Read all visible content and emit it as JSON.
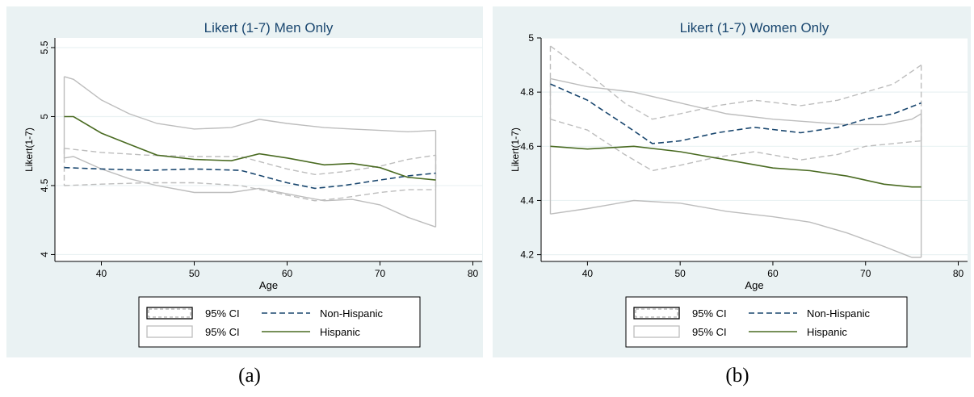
{
  "panels": [
    {
      "caption": "(a)",
      "colors": {
        "background": "#eaf2f3",
        "plot_bg": "#ffffff",
        "grid": "#eaf2f3",
        "title": "#1a476f"
      },
      "chart_data": {
        "type": "line",
        "title": "Likert (1-7) Men Only",
        "xlabel": "Age",
        "ylabel": "Likert(1-7)",
        "xlim": [
          35,
          81
        ],
        "ylim": [
          3.95,
          5.57
        ],
        "xticks": [
          40,
          50,
          60,
          70,
          80
        ],
        "yticks": [
          4,
          4.5,
          5,
          5.5
        ],
        "ytick_labels": [
          "4",
          "4.5",
          "5",
          "5.5"
        ],
        "ytick_rotated": true,
        "grid": true,
        "legend_position": "bottom",
        "series": [
          {
            "name": "Non-Hispanic",
            "style": "dashed",
            "color": "#1a476f",
            "role": "line",
            "x": [
              36,
              40,
              45,
              50,
              55,
              60,
              63,
              66,
              70,
              73,
              76
            ],
            "y": [
              4.63,
              4.62,
              4.61,
              4.62,
              4.61,
              4.52,
              4.48,
              4.5,
              4.54,
              4.57,
              4.59
            ]
          },
          {
            "name": "95% CI",
            "style": "dashed",
            "color": "#bdbdbd",
            "role": "band",
            "x": [
              36,
              40,
              45,
              50,
              55,
              60,
              63,
              66,
              70,
              73,
              76
            ],
            "upper": [
              4.77,
              4.74,
              4.72,
              4.71,
              4.71,
              4.62,
              4.58,
              4.6,
              4.64,
              4.69,
              4.72
            ],
            "lower": [
              4.5,
              4.51,
              4.52,
              4.52,
              4.5,
              4.43,
              4.39,
              4.41,
              4.45,
              4.47,
              4.47
            ]
          },
          {
            "name": "Hispanic",
            "style": "solid",
            "color": "#4a6b22",
            "role": "line",
            "x": [
              36,
              37,
              40,
              43,
              46,
              50,
              54,
              57,
              60,
              64,
              67,
              70,
              73,
              76
            ],
            "y": [
              5.0,
              5.0,
              4.88,
              4.8,
              4.72,
              4.69,
              4.68,
              4.73,
              4.7,
              4.65,
              4.66,
              4.63,
              4.56,
              4.54
            ]
          },
          {
            "name": "95% CI",
            "style": "solid",
            "color": "#bdbdbd",
            "role": "band",
            "x": [
              36,
              37,
              40,
              43,
              46,
              50,
              54,
              57,
              60,
              64,
              67,
              70,
              73,
              76
            ],
            "upper": [
              5.29,
              5.27,
              5.12,
              5.02,
              4.95,
              4.91,
              4.92,
              4.98,
              4.95,
              4.92,
              4.91,
              4.9,
              4.89,
              4.9
            ],
            "lower": [
              4.7,
              4.71,
              4.62,
              4.55,
              4.5,
              4.45,
              4.45,
              4.48,
              4.44,
              4.39,
              4.4,
              4.36,
              4.27,
              4.2
            ]
          }
        ]
      }
    },
    {
      "caption": "(b)",
      "colors": {
        "background": "#eaf2f3",
        "plot_bg": "#ffffff",
        "grid": "#eaf2f3",
        "title": "#1a476f"
      },
      "chart_data": {
        "type": "line",
        "title": "Likert (1-7) Women Only",
        "xlabel": "Age",
        "ylabel": "Likert(1-7)",
        "xlim": [
          35,
          81
        ],
        "ylim": [
          4.175,
          5.0
        ],
        "xticks": [
          40,
          50,
          60,
          70,
          80
        ],
        "yticks": [
          4.2,
          4.4,
          4.6,
          4.8,
          5.0
        ],
        "ytick_labels": [
          "4.2",
          "4.4",
          "4.6",
          "4.8",
          "5"
        ],
        "ytick_rotated": false,
        "grid": true,
        "legend_position": "bottom",
        "series": [
          {
            "name": "Non-Hispanic",
            "style": "dashed",
            "color": "#1a476f",
            "role": "line",
            "x": [
              36,
              40,
              44,
              47,
              50,
              54,
              58,
              63,
              67,
              70,
              73,
              76
            ],
            "y": [
              4.83,
              4.77,
              4.68,
              4.61,
              4.62,
              4.65,
              4.67,
              4.65,
              4.67,
              4.7,
              4.72,
              4.76
            ]
          },
          {
            "name": "95% CI",
            "style": "dashed",
            "color": "#bdbdbd",
            "role": "band",
            "x": [
              36,
              40,
              44,
              47,
              50,
              54,
              58,
              63,
              67,
              70,
              73,
              76
            ],
            "upper": [
              4.97,
              4.87,
              4.76,
              4.7,
              4.72,
              4.75,
              4.77,
              4.75,
              4.77,
              4.8,
              4.83,
              4.9
            ],
            "lower": [
              4.7,
              4.66,
              4.57,
              4.51,
              4.53,
              4.56,
              4.58,
              4.55,
              4.57,
              4.6,
              4.61,
              4.62
            ]
          },
          {
            "name": "Hispanic",
            "style": "solid",
            "color": "#4a6b22",
            "role": "line",
            "x": [
              36,
              40,
              45,
              50,
              55,
              60,
              64,
              68,
              72,
              75,
              76
            ],
            "y": [
              4.6,
              4.59,
              4.6,
              4.58,
              4.55,
              4.52,
              4.51,
              4.49,
              4.46,
              4.45,
              4.45
            ]
          },
          {
            "name": "95% CI",
            "style": "solid",
            "color": "#bdbdbd",
            "role": "band",
            "x": [
              36,
              40,
              45,
              50,
              55,
              60,
              64,
              68,
              72,
              75,
              76
            ],
            "upper": [
              4.85,
              4.82,
              4.8,
              4.76,
              4.72,
              4.7,
              4.69,
              4.68,
              4.68,
              4.7,
              4.72
            ],
            "lower": [
              4.35,
              4.37,
              4.4,
              4.39,
              4.36,
              4.34,
              4.32,
              4.28,
              4.23,
              4.19,
              4.19
            ]
          }
        ]
      }
    }
  ],
  "legend": {
    "items": [
      {
        "label": "95% CI",
        "swatch": "box-dashed"
      },
      {
        "label": "Non-Hispanic",
        "swatch": "line-dashed-blue"
      },
      {
        "label": "95% CI",
        "swatch": "box-light"
      },
      {
        "label": "Hispanic",
        "swatch": "line-solid-green"
      }
    ]
  }
}
